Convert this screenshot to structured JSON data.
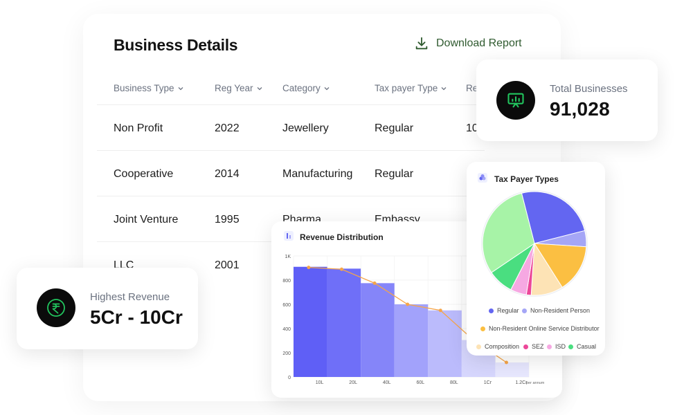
{
  "header": {
    "title": "Business Details",
    "download_label": "Download Report"
  },
  "table": {
    "columns": [
      "Business Type",
      "Reg Year",
      "Category",
      "Tax payer Type",
      "Re"
    ],
    "rows": [
      [
        "Non Profit",
        "2022",
        "Jewellery",
        "Regular",
        "10"
      ],
      [
        "Cooperative",
        "2014",
        "Manufacturing",
        "Regular",
        ""
      ],
      [
        "Joint Venture",
        "1995",
        "Pharma",
        "Embassy",
        ""
      ],
      [
        "LLC",
        "2001",
        "",
        "",
        ""
      ]
    ]
  },
  "total_card": {
    "label": "Total Businesses",
    "value": "91,028",
    "icon": "presentation-chart-icon",
    "accent": "#22c55e"
  },
  "revenue_card": {
    "label": "Highest Revenue",
    "value": "5Cr - 10Cr",
    "icon": "rupee-coin-icon",
    "accent": "#22c55e"
  },
  "revenue_chart": {
    "title": "Revenue Distribution",
    "icon": "bar-chart-icon",
    "chart_data": {
      "type": "bar",
      "title": "Revenue Distribution",
      "x_ticks": [
        "10L",
        "20L",
        "40L",
        "60L",
        "80L",
        "1Cr",
        "1.2Cr"
      ],
      "x_unit": "per annum",
      "y_ticks": [
        "0",
        "200",
        "400",
        "600",
        "800",
        "1K"
      ],
      "ylim": [
        0,
        1000
      ],
      "values": [
        910,
        895,
        775,
        600,
        550,
        305,
        120
      ],
      "bar_colors": [
        "#5f5ff6",
        "#6f6ff8",
        "#8585f9",
        "#a2a2fb",
        "#bbbbfc",
        "#d6d6fd",
        "#e7e7fe"
      ],
      "line_color": "#f5a54a",
      "line_values": [
        905,
        890,
        775,
        600,
        550,
        305,
        120
      ]
    }
  },
  "pie_chart": {
    "title": "Tax Payer Types",
    "icon": "pie-chart-icon",
    "chart_data": {
      "type": "pie",
      "slices": [
        {
          "name": "Regular",
          "value": 25,
          "color": "#6366f1"
        },
        {
          "name": "Non-Resident Person",
          "value": 5,
          "color": "#a5a6f6"
        },
        {
          "name": "Non-Resident Online Service Distributor",
          "value": 15,
          "color": "#fbbf42"
        },
        {
          "name": "Composition",
          "value": 10,
          "color": "#fde3b5"
        },
        {
          "name": "SEZ",
          "value": 1.5,
          "color": "#ec4899"
        },
        {
          "name": "ISD",
          "value": 5,
          "color": "#f6a8e2"
        },
        {
          "name": "Casual",
          "value": 8,
          "color": "#4ade80"
        },
        {
          "name": "",
          "value": 30.5,
          "color": "#a7f3a7"
        }
      ]
    }
  }
}
